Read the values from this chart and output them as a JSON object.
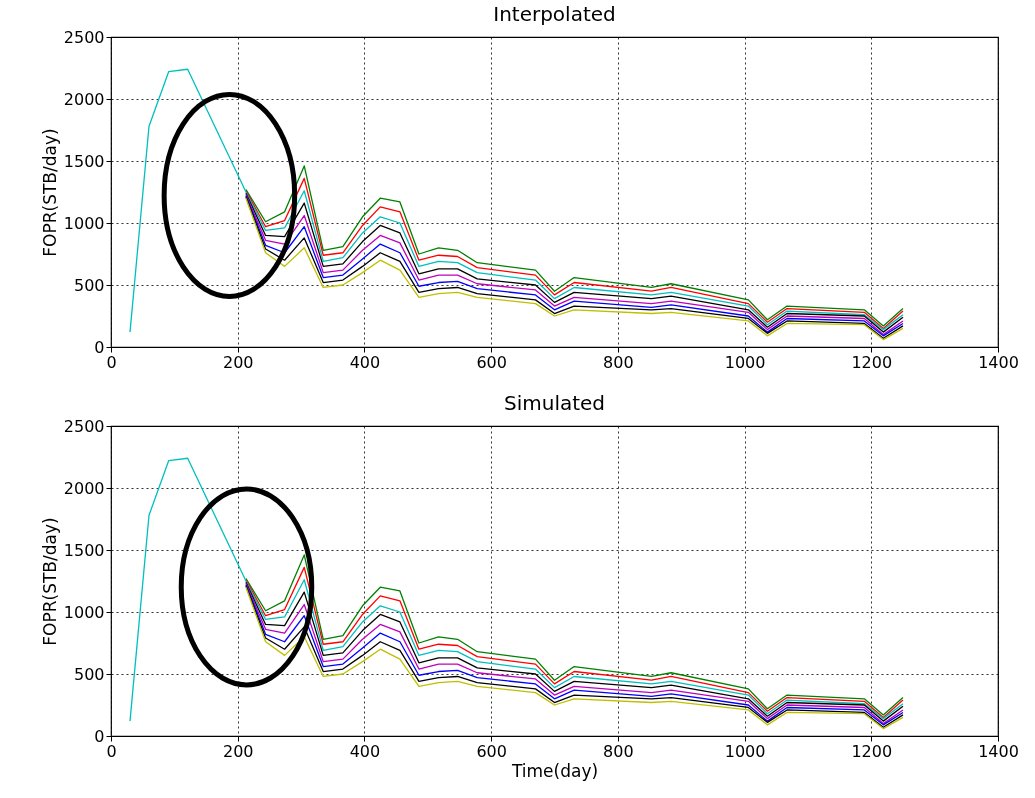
{
  "chart_data": [
    {
      "type": "line",
      "title": "Interpolated",
      "ylabel": "FOPR(STB/day)",
      "x": [
        30,
        60,
        91,
        121,
        213,
        244,
        274,
        305,
        335,
        366,
        397,
        425,
        456,
        486,
        517,
        547,
        578,
        670,
        700,
        731,
        853,
        884,
        1006,
        1036,
        1067,
        1189,
        1219,
        1250
      ],
      "xlim": [
        0,
        1400
      ],
      "xticks": [
        0,
        200,
        400,
        600,
        800,
        1000,
        1200,
        1400
      ],
      "ylim": [
        0,
        2500
      ],
      "yticks": [
        0,
        500,
        1000,
        1500,
        2000,
        2500
      ],
      "grid": true,
      "series": [
        {
          "color": "#008000",
          "values": [
            null,
            null,
            null,
            null,
            1270,
            1010,
            1090,
            1460,
            780,
            810,
            1050,
            1200,
            1170,
            750,
            800,
            780,
            680,
            620,
            450,
            560,
            480,
            510,
            380,
            220,
            330,
            300,
            170,
            310
          ]
        },
        {
          "color": "#ff0000",
          "values": [
            null,
            null,
            null,
            null,
            1260,
            970,
            1020,
            1360,
            740,
            760,
            980,
            1130,
            1090,
            700,
            740,
            730,
            640,
            580,
            420,
            520,
            450,
            480,
            350,
            200,
            310,
            280,
            150,
            290
          ]
        },
        {
          "color": "#00bfbf",
          "values": [
            120,
            1780,
            2220,
            2240,
            1250,
            940,
            960,
            1260,
            690,
            720,
            920,
            1050,
            1000,
            650,
            690,
            680,
            600,
            540,
            390,
            480,
            420,
            440,
            330,
            180,
            290,
            260,
            140,
            260
          ]
        },
        {
          "color": "#000000",
          "values": [
            null,
            null,
            null,
            null,
            1240,
            900,
            890,
            1160,
            650,
            670,
            850,
            980,
            920,
            590,
            630,
            630,
            550,
            500,
            360,
            440,
            390,
            410,
            300,
            160,
            270,
            250,
            120,
            240
          ]
        },
        {
          "color": "#bf00bf",
          "values": [
            null,
            null,
            null,
            null,
            1230,
            860,
            830,
            1060,
            600,
            620,
            780,
            900,
            840,
            540,
            580,
            580,
            510,
            460,
            330,
            400,
            350,
            370,
            280,
            140,
            250,
            230,
            100,
            210
          ]
        },
        {
          "color": "#0000ff",
          "values": [
            null,
            null,
            null,
            null,
            1220,
            820,
            760,
            970,
            560,
            580,
            710,
            830,
            760,
            490,
            520,
            530,
            470,
            420,
            300,
            370,
            320,
            340,
            250,
            120,
            230,
            210,
            90,
            190
          ]
        },
        {
          "color": "#000000",
          "values": [
            null,
            null,
            null,
            null,
            1210,
            790,
            700,
            880,
            520,
            540,
            650,
            760,
            690,
            440,
            470,
            480,
            430,
            380,
            270,
            330,
            300,
            310,
            230,
            110,
            210,
            190,
            70,
            170
          ]
        },
        {
          "color": "#bfbf00",
          "values": [
            null,
            null,
            null,
            null,
            1200,
            760,
            650,
            800,
            480,
            500,
            600,
            700,
            620,
            400,
            430,
            440,
            400,
            350,
            250,
            300,
            270,
            280,
            210,
            90,
            190,
            180,
            60,
            150
          ]
        }
      ]
    },
    {
      "type": "line",
      "title": "Simulated",
      "xlabel": "Time(day)",
      "ylabel": "FOPR(STB/day)",
      "x": [
        30,
        60,
        91,
        121,
        213,
        244,
        274,
        305,
        335,
        366,
        397,
        425,
        456,
        486,
        517,
        547,
        578,
        670,
        700,
        731,
        853,
        884,
        1006,
        1036,
        1067,
        1189,
        1219,
        1250
      ],
      "xlim": [
        0,
        1400
      ],
      "xticks": [
        0,
        200,
        400,
        600,
        800,
        1000,
        1200,
        1400
      ],
      "ylim": [
        0,
        2500
      ],
      "yticks": [
        0,
        500,
        1000,
        1500,
        2000,
        2500
      ],
      "grid": true,
      "series": [
        {
          "color": "#008000",
          "values": [
            null,
            null,
            null,
            null,
            1270,
            1010,
            1090,
            1460,
            780,
            810,
            1050,
            1200,
            1170,
            750,
            800,
            780,
            680,
            620,
            450,
            560,
            480,
            510,
            380,
            220,
            330,
            300,
            170,
            310
          ]
        },
        {
          "color": "#ff0000",
          "values": [
            null,
            null,
            null,
            null,
            1260,
            970,
            1020,
            1360,
            740,
            760,
            980,
            1130,
            1090,
            700,
            740,
            730,
            640,
            580,
            420,
            520,
            450,
            480,
            350,
            200,
            310,
            280,
            150,
            290
          ]
        },
        {
          "color": "#00bfbf",
          "values": [
            120,
            1780,
            2220,
            2240,
            1250,
            940,
            960,
            1260,
            690,
            720,
            920,
            1050,
            1000,
            650,
            690,
            680,
            600,
            540,
            390,
            480,
            420,
            440,
            330,
            180,
            290,
            260,
            140,
            260
          ]
        },
        {
          "color": "#000000",
          "values": [
            null,
            null,
            null,
            null,
            1240,
            900,
            890,
            1160,
            650,
            670,
            850,
            980,
            920,
            590,
            630,
            630,
            550,
            500,
            360,
            440,
            390,
            410,
            300,
            160,
            270,
            250,
            120,
            240
          ]
        },
        {
          "color": "#bf00bf",
          "values": [
            null,
            null,
            null,
            null,
            1230,
            860,
            830,
            1060,
            600,
            620,
            780,
            900,
            840,
            540,
            580,
            580,
            510,
            460,
            330,
            400,
            350,
            370,
            280,
            140,
            250,
            230,
            100,
            210
          ]
        },
        {
          "color": "#0000ff",
          "values": [
            null,
            null,
            null,
            null,
            1220,
            820,
            760,
            970,
            560,
            580,
            710,
            830,
            760,
            490,
            520,
            530,
            470,
            420,
            300,
            370,
            320,
            340,
            250,
            120,
            230,
            210,
            90,
            190
          ]
        },
        {
          "color": "#000000",
          "values": [
            null,
            null,
            null,
            null,
            1210,
            790,
            700,
            880,
            520,
            540,
            650,
            760,
            690,
            440,
            470,
            480,
            430,
            380,
            270,
            330,
            300,
            310,
            230,
            110,
            210,
            190,
            70,
            170
          ]
        },
        {
          "color": "#bfbf00",
          "values": [
            null,
            null,
            null,
            null,
            1200,
            760,
            650,
            800,
            480,
            500,
            600,
            700,
            620,
            400,
            430,
            440,
            400,
            350,
            250,
            300,
            270,
            280,
            210,
            90,
            190,
            180,
            60,
            150
          ]
        }
      ]
    }
  ]
}
